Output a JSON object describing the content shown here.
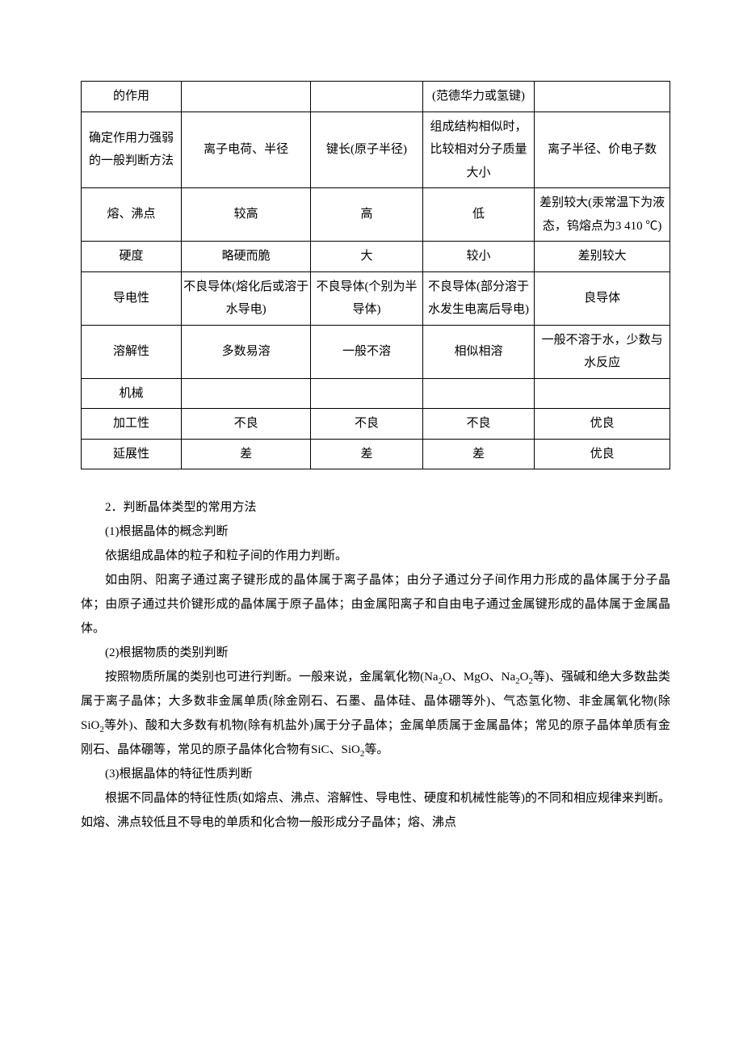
{
  "table": {
    "rows": [
      {
        "c0": "的作用",
        "c1": "",
        "c2": "",
        "c3": "(范德华力或氢键)",
        "c4": ""
      },
      {
        "c0": "确定作用力强弱的一般判断方法",
        "c1": "离子电荷、半径",
        "c2": "键长(原子半径)",
        "c3": "组成结构相似时，比较相对分子质量大小",
        "c4": "离子半径、价电子数"
      },
      {
        "c0": "熔、沸点",
        "c1": "较高",
        "c2": "高",
        "c3": "低",
        "c4": "差别较大(汞常温下为液态，钨熔点为3 410 ℃)"
      },
      {
        "c0": "硬度",
        "c1": "略硬而脆",
        "c2": "大",
        "c3": "较小",
        "c4": "差别较大"
      },
      {
        "c0": "导电性",
        "c1": "不良导体(熔化后或溶于水导电)",
        "c2": "不良导体(个别为半导体)",
        "c3": "不良导体(部分溶于水发生电离后导电)",
        "c4": "良导体"
      },
      {
        "c0": "溶解性",
        "c1": "多数易溶",
        "c2": "一般不溶",
        "c3": "相似相溶",
        "c4": "一般不溶于水，少数与水反应"
      },
      {
        "c0": "机械",
        "c1": "",
        "c2": "",
        "c3": "",
        "c4": ""
      },
      {
        "c0": "加工性",
        "c1": "不良",
        "c2": "不良",
        "c3": "不良",
        "c4": "优良"
      },
      {
        "c0": "延展性",
        "c1": "差",
        "c2": "差",
        "c3": "差",
        "c4": "优良"
      }
    ]
  },
  "paragraphs": {
    "p1": "2．判断晶体类型的常用方法",
    "p2": "(1)根据晶体的概念判断",
    "p3": "依据组成晶体的粒子和粒子间的作用力判断。",
    "p4": "如由阴、阳离子通过离子键形成的晶体属于离子晶体；由分子通过分子间作用力形成的晶体属于分子晶体；由原子通过共价键形成的晶体属于原子晶体；由金属阳离子和自由电子通过金属键形成的晶体属于金属晶体。",
    "p5": "(2)根据物质的类别判断",
    "p6_a": "按照物质所属的类别也可进行判断。一般来说，金属氧化物(Na",
    "p6_b": "O、MgO、Na",
    "p6_c": "O",
    "p6_d": "等)、强碱和绝大多数盐类属于离子晶体；大多数非金属单质(除金刚石、石墨、晶体硅、晶体硼等外)、气态氢化物、非金属氧化物(除SiO",
    "p6_e": "等外)、酸和大多数有机物(除有机盐外)属于分子晶体；金属单质属于金属晶体；常见的原子晶体单质有金刚石、晶体硼等，常见的原子晶体化合物有SiC、SiO",
    "p6_f": "等。",
    "p7": "(3)根据晶体的特征性质判断",
    "p8": "根据不同晶体的特征性质(如熔点、沸点、溶解性、导电性、硬度和机械性能等)的不同和相应规律来判断。如熔、沸点较低且不导电的单质和化合物一般形成分子晶体；熔、沸点",
    "sub2": "2"
  }
}
